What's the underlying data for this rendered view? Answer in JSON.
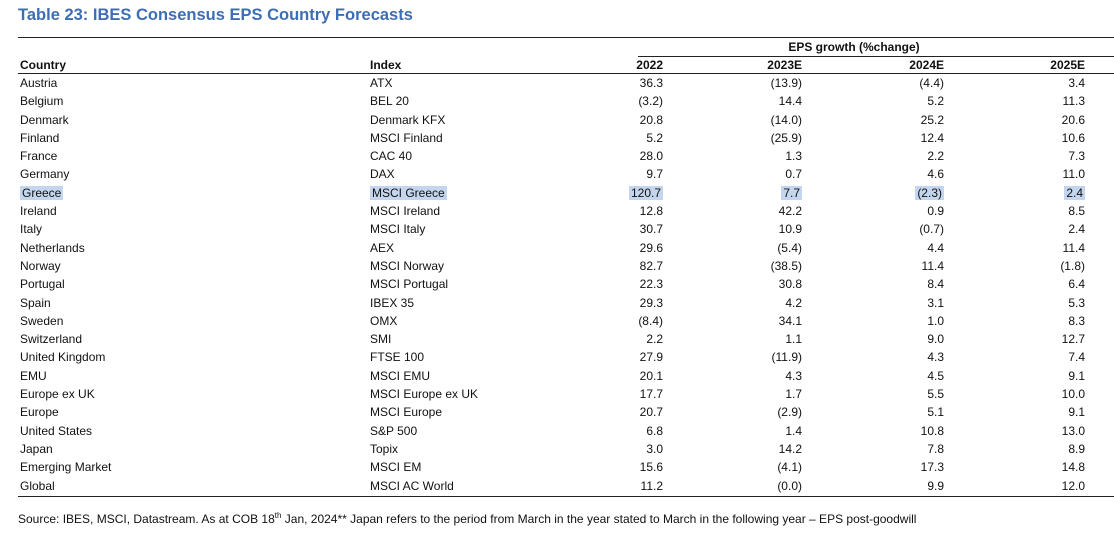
{
  "title": "Table 23: IBES Consensus EPS Country Forecasts",
  "group_header": "EPS growth (%change)",
  "columns": {
    "country": "Country",
    "index": "Index",
    "y2022": "2022",
    "y2023": "2023E",
    "y2024": "2024E",
    "y2025": "2025E"
  },
  "rows": [
    {
      "country": "Austria",
      "index": "ATX",
      "y2022": "36.3",
      "y2023": "(13.9)",
      "y2024": "(4.4)",
      "y2025": "3.4"
    },
    {
      "country": "Belgium",
      "index": "BEL 20",
      "y2022": "(3.2)",
      "y2023": "14.4",
      "y2024": "5.2",
      "y2025": "11.3"
    },
    {
      "country": "Denmark",
      "index": "Denmark KFX",
      "y2022": "20.8",
      "y2023": "(14.0)",
      "y2024": "25.2",
      "y2025": "20.6"
    },
    {
      "country": "Finland",
      "index": "MSCI Finland",
      "y2022": "5.2",
      "y2023": "(25.9)",
      "y2024": "12.4",
      "y2025": "10.6"
    },
    {
      "country": "France",
      "index": "CAC 40",
      "y2022": "28.0",
      "y2023": "1.3",
      "y2024": "2.2",
      "y2025": "7.3"
    },
    {
      "country": "Germany",
      "index": "DAX",
      "y2022": "9.7",
      "y2023": "0.7",
      "y2024": "4.6",
      "y2025": "11.0"
    },
    {
      "country": "Greece",
      "index": "MSCI Greece",
      "y2022": "120.7",
      "y2023": "7.7",
      "y2024": "(2.3)",
      "y2025": "2.4",
      "highlighted": true
    },
    {
      "country": "Ireland",
      "index": "MSCI Ireland",
      "y2022": "12.8",
      "y2023": "42.2",
      "y2024": "0.9",
      "y2025": "8.5"
    },
    {
      "country": "Italy",
      "index": "MSCI Italy",
      "y2022": "30.7",
      "y2023": "10.9",
      "y2024": "(0.7)",
      "y2025": "2.4"
    },
    {
      "country": "Netherlands",
      "index": "AEX",
      "y2022": "29.6",
      "y2023": "(5.4)",
      "y2024": "4.4",
      "y2025": "11.4"
    },
    {
      "country": "Norway",
      "index": "MSCI Norway",
      "y2022": "82.7",
      "y2023": "(38.5)",
      "y2024": "11.4",
      "y2025": "(1.8)"
    },
    {
      "country": "Portugal",
      "index": "MSCI Portugal",
      "y2022": "22.3",
      "y2023": "30.8",
      "y2024": "8.4",
      "y2025": "6.4"
    },
    {
      "country": "Spain",
      "index": "IBEX 35",
      "y2022": "29.3",
      "y2023": "4.2",
      "y2024": "3.1",
      "y2025": "5.3"
    },
    {
      "country": "Sweden",
      "index": "OMX",
      "y2022": "(8.4)",
      "y2023": "34.1",
      "y2024": "1.0",
      "y2025": "8.3"
    },
    {
      "country": "Switzerland",
      "index": "SMI",
      "y2022": "2.2",
      "y2023": "1.1",
      "y2024": "9.0",
      "y2025": "12.7"
    },
    {
      "country": "United Kingdom",
      "index": "FTSE 100",
      "y2022": "27.9",
      "y2023": "(11.9)",
      "y2024": "4.3",
      "y2025": "7.4"
    },
    {
      "country": "EMU",
      "index": "MSCI EMU",
      "y2022": "20.1",
      "y2023": "4.3",
      "y2024": "4.5",
      "y2025": "9.1"
    },
    {
      "country": "Europe ex UK",
      "index": "MSCI Europe ex UK",
      "y2022": "17.7",
      "y2023": "1.7",
      "y2024": "5.5",
      "y2025": "10.0"
    },
    {
      "country": "Europe",
      "index": "MSCI Europe",
      "y2022": "20.7",
      "y2023": "(2.9)",
      "y2024": "5.1",
      "y2025": "9.1"
    },
    {
      "country": "United States",
      "index": "S&P 500",
      "y2022": "6.8",
      "y2023": "1.4",
      "y2024": "10.8",
      "y2025": "13.0"
    },
    {
      "country": "Japan",
      "index": "Topix",
      "y2022": "3.0",
      "y2023": "14.2",
      "y2024": "7.8",
      "y2025": "8.9"
    },
    {
      "country": "Emerging Market",
      "index": "MSCI EM",
      "y2022": "15.6",
      "y2023": "(4.1)",
      "y2024": "17.3",
      "y2025": "14.8"
    },
    {
      "country": "Global",
      "index": "MSCI AC World",
      "y2022": "11.2",
      "y2023": "(0.0)",
      "y2024": "9.9",
      "y2025": "12.0"
    }
  ],
  "source": {
    "prefix": "Source: IBES, MSCI, Datastream. As at COB 18",
    "sup": "th",
    "suffix": " Jan, 2024** Japan refers to the period from March in the year stated to March in the following year – EPS post-goodwill"
  },
  "colors": {
    "title": "#3d6eb4",
    "highlight": "#c4d6ee"
  }
}
